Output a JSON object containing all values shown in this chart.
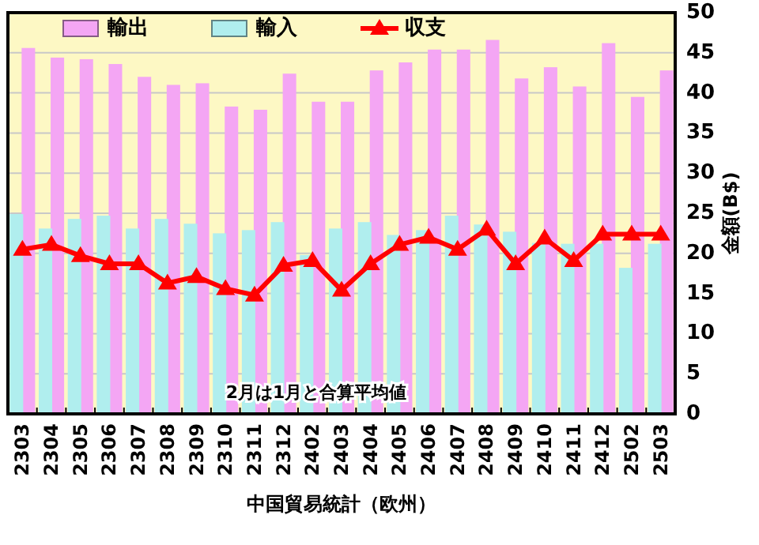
{
  "chart_data": {
    "type": "bar",
    "categories": [
      "2303",
      "2304",
      "2305",
      "2306",
      "2307",
      "2308",
      "2309",
      "2310",
      "2311",
      "2312",
      "2402",
      "2403",
      "2404",
      "2405",
      "2406",
      "2407",
      "2408",
      "2409",
      "2410",
      "2411",
      "2412",
      "2502",
      "2503"
    ],
    "series": [
      {
        "name": "輸出",
        "color": "#f4a6f4",
        "values": [
          45.5,
          44.3,
          44.1,
          43.5,
          41.9,
          40.9,
          41.1,
          38.2,
          37.8,
          42.3,
          38.8,
          38.8,
          42.7,
          43.7,
          45.3,
          45.3,
          46.5,
          41.7,
          43.1,
          40.7,
          46.1,
          39.4,
          42.7
        ]
      },
      {
        "name": "輸入",
        "color": "#b0eeee",
        "values": [
          24.8,
          23.0,
          24.2,
          24.6,
          23.0,
          24.2,
          23.6,
          22.4,
          22.8,
          23.8,
          19.7,
          23.0,
          23.8,
          22.2,
          22.8,
          24.6,
          23.5,
          22.6,
          21.2,
          21.1,
          21.1,
          18.1,
          21.1
        ]
      },
      {
        "name": "収支",
        "type": "line",
        "color": "#ff0000",
        "marker": "triangle",
        "values": [
          20.5,
          21.1,
          19.7,
          18.7,
          18.7,
          16.3,
          17.1,
          15.6,
          14.8,
          18.5,
          19.1,
          15.4,
          18.7,
          21.1,
          22.0,
          20.5,
          23.0,
          18.7,
          21.9,
          19.1,
          22.4,
          22.4,
          22.4
        ]
      }
    ],
    "ylim": [
      0,
      50
    ],
    "yticks": [
      0,
      5,
      10,
      15,
      20,
      25,
      30,
      35,
      40,
      45,
      50
    ],
    "ylabel": "金額(B$)",
    "xlabel": "中国貿易統計（欧州）",
    "annotations": [
      "2月は1月と合算平均値"
    ],
    "grid": "y",
    "legend": "top"
  }
}
